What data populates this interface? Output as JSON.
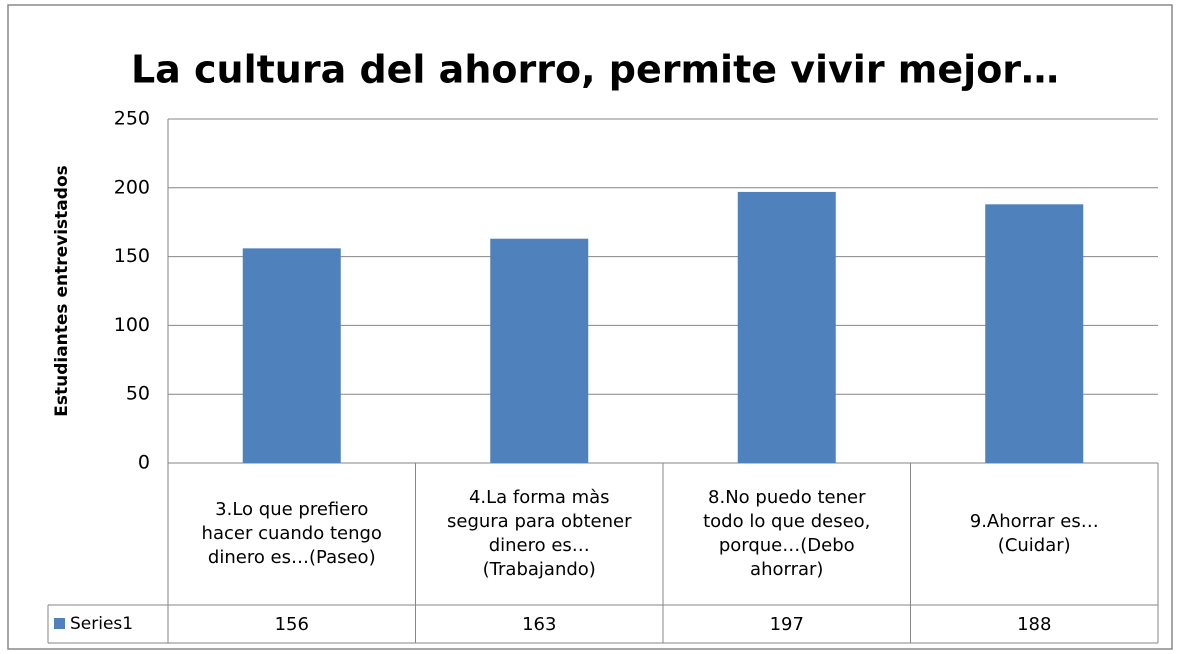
{
  "chart_data": {
    "type": "bar",
    "title": "La cultura del ahorro, permite vivir mejor…",
    "ylabel": "Estudiantes entrevistados",
    "categories": [
      "3.Lo que prefiero hacer cuando tengo dinero es…(Paseo)",
      "4.La forma màs segura para obtener dinero es…(Trabajando)",
      "8.No puedo tener todo lo que deseo, porque…(Debo ahorrar)",
      "9.Ahorrar es…(Cuidar)"
    ],
    "series": [
      {
        "name": "Series1",
        "color": "#4f81bd",
        "values": [
          156,
          163,
          197,
          188
        ]
      }
    ],
    "ylim": [
      0,
      250
    ],
    "yticks": [
      0,
      50,
      100,
      150,
      200,
      250
    ],
    "grid": true,
    "data_table": true
  }
}
